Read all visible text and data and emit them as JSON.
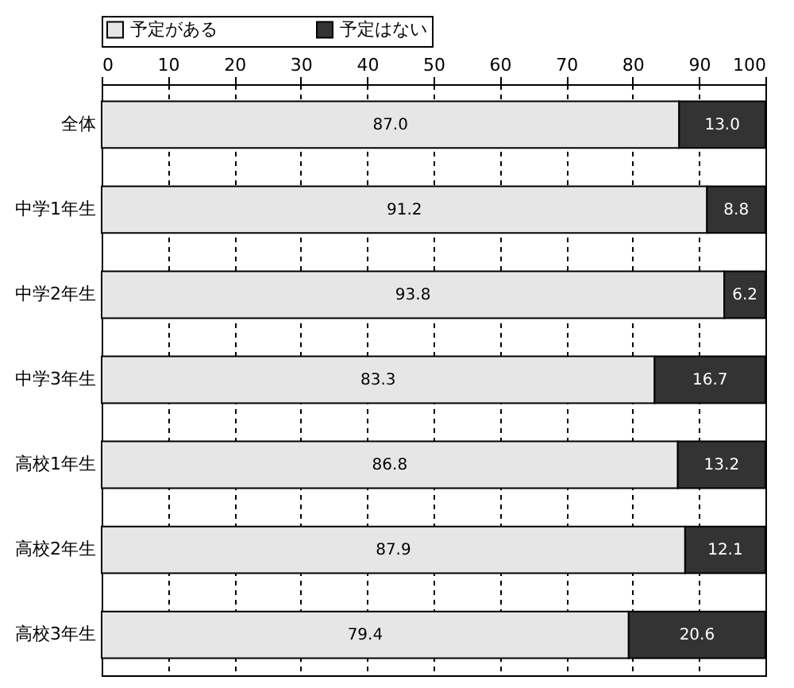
{
  "chart_data": {
    "type": "bar",
    "orientation": "horizontal",
    "stacked": true,
    "categories": [
      "全体",
      "中学1年生",
      "中学2年生",
      "中学3年生",
      "高校1年生",
      "高校2年生",
      "高校3年生"
    ],
    "series": [
      {
        "name": "予定がある",
        "color": "#e6e6e6",
        "values": [
          87.0,
          91.2,
          93.8,
          83.3,
          86.8,
          87.9,
          79.4
        ],
        "value_labels": [
          "87.0",
          "91.2",
          "93.8",
          "83.3",
          "86.8",
          "87.9",
          "79.4"
        ]
      },
      {
        "name": "予定はない",
        "color": "#333333",
        "values": [
          13.0,
          8.8,
          6.2,
          16.7,
          13.2,
          12.1,
          20.6
        ],
        "value_labels": [
          "13.0",
          "8.8",
          "6.2",
          "16.7",
          "13.2",
          "12.1",
          "20.6"
        ]
      }
    ],
    "xlim": [
      0,
      100
    ],
    "xticks": [
      0,
      10,
      20,
      30,
      40,
      50,
      60,
      70,
      80,
      90,
      100
    ],
    "grid": "x",
    "legend": "top"
  }
}
